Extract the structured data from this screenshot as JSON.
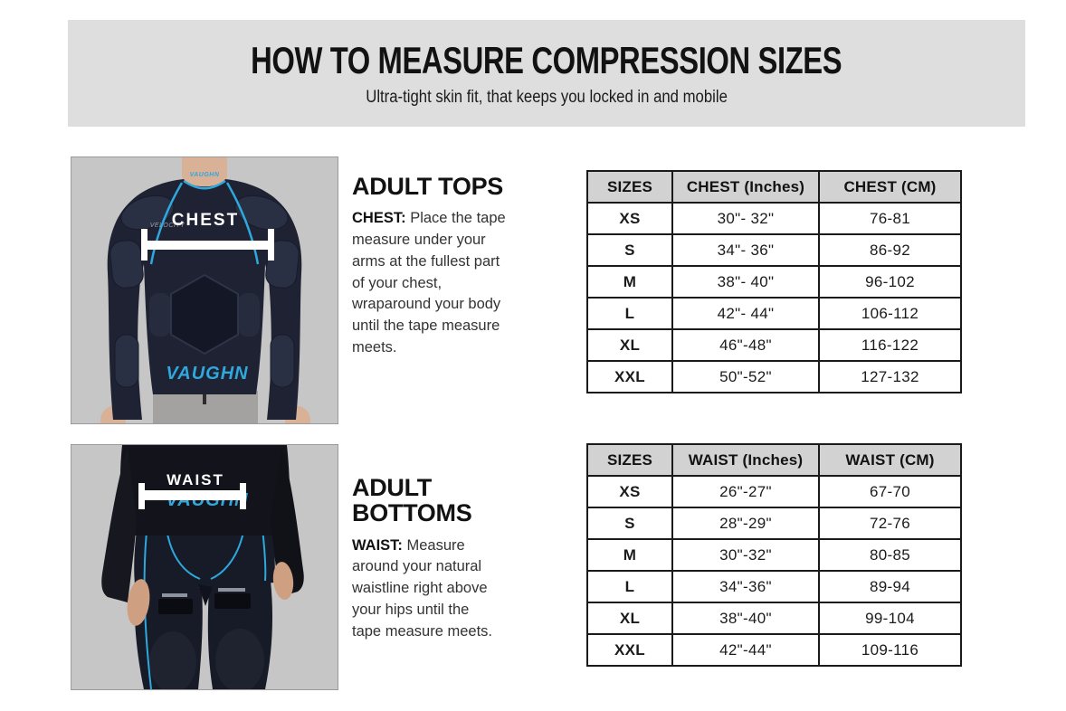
{
  "header": {
    "title": "HOW TO MEASURE COMPRESSION SIZES",
    "subtitle": "Ultra-tight skin fit, that keeps you locked in and mobile"
  },
  "brand": {
    "name": "VAUGHN",
    "accent_blue": "#2fa8de"
  },
  "colors": {
    "band_bg": "#dedede",
    "table_header_bg": "#d2d2d2",
    "photo_bg": "#c6c6c6",
    "garment_dark": "#1e2232"
  },
  "sections": [
    {
      "heading": "ADULT TOPS",
      "lead": "CHEST:",
      "body": "Place the tape measure under your arms at the fullest part of your chest, wraparound your body until the tape measure meets.",
      "photo_label": "CHEST",
      "photo_small_text": "VELOCITY",
      "table": {
        "columns": [
          "SIZES",
          "CHEST (Inches)",
          "CHEST (CM)"
        ],
        "rows": [
          [
            "XS",
            "30\"- 32\"",
            "76-81"
          ],
          [
            "S",
            "34\"- 36\"",
            "86-92"
          ],
          [
            "M",
            "38\"- 40\"",
            "96-102"
          ],
          [
            "L",
            "42\"- 44\"",
            "106-112"
          ],
          [
            "XL",
            "46\"-48\"",
            "116-122"
          ],
          [
            "XXL",
            "50\"-52\"",
            "127-132"
          ]
        ]
      }
    },
    {
      "heading": "ADULT BOTTOMS",
      "lead": "WAIST:",
      "body": "Measure around your natural waistline right above your hips until the tape measure meets.",
      "photo_label": "WAIST",
      "table": {
        "columns": [
          "SIZES",
          "WAIST (Inches)",
          "WAIST (CM)"
        ],
        "rows": [
          [
            "XS",
            "26\"-27\"",
            "67-70"
          ],
          [
            "S",
            "28\"-29\"",
            "72-76"
          ],
          [
            "M",
            "30\"-32\"",
            "80-85"
          ],
          [
            "L",
            "34\"-36\"",
            "89-94"
          ],
          [
            "XL",
            "38\"-40\"",
            "99-104"
          ],
          [
            "XXL",
            "42\"-44\"",
            "109-116"
          ]
        ]
      }
    }
  ]
}
